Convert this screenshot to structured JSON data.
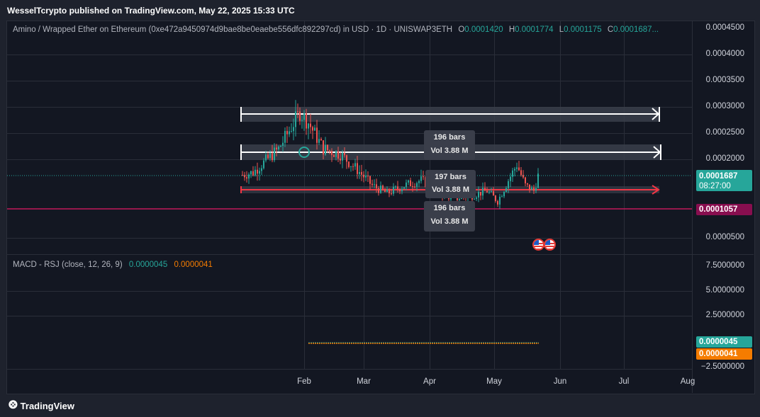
{
  "header": {
    "publisher_line": "WesselTcrypto published on TradingView.com, May 22, 2025 15:33 UTC"
  },
  "symbol": {
    "description": "Amino / Wrapped Ether on Ethereum (0xe472a9450974d9bae8be0eaebe556dfc892297cd) in USD · 1D · UNISWAP3ETH",
    "open_label": "O",
    "open": "0.0001420",
    "high_label": "H",
    "high": "0.0001774",
    "low_label": "L",
    "low": "0.0001175",
    "close_label": "C",
    "close": "0.0001687..."
  },
  "price_axis": {
    "ticks": [
      "0.0004500",
      "0.0004000",
      "0.0003500",
      "0.0003000",
      "0.0002500",
      "0.0002000",
      "0.0000500"
    ]
  },
  "price_labels": {
    "current_price": "0.0001687",
    "countdown": "08:27:00",
    "support_level": "0.0001057"
  },
  "macd": {
    "title": "MACD - RSJ (close, 12, 26, 9)",
    "macd_value": "0.0000045",
    "signal_value": "0.0000041",
    "axis_ticks": [
      "7.5000000",
      "5.0000000",
      "2.5000000",
      "−2.5000000"
    ],
    "label_macd": "0.0000045",
    "label_signal": "0.0000041"
  },
  "time_axis": {
    "ticks": [
      "Feb",
      "Mar",
      "Apr",
      "May",
      "Jun",
      "Jul",
      "Aug"
    ]
  },
  "measure_boxes": [
    {
      "bars": "196 bars",
      "vol": "Vol 3.88 M"
    },
    {
      "bars": "197 bars",
      "vol": "Vol 3.88 M"
    },
    {
      "bars": "196 bars",
      "vol": "Vol 3.88 M"
    }
  ],
  "footer": {
    "brand": "TradingView",
    "logo_glyph": "⨷"
  },
  "colors": {
    "up": "#26a69a",
    "down": "#ef5350",
    "macd": "#26a69a",
    "signal": "#f57c00",
    "support": "#c2185b",
    "band": "#363a45",
    "arrow_white": "#ffffff",
    "arrow_red": "#f23645"
  },
  "chart_data": {
    "type": "candlestick",
    "x_range": [
      "2025-01-02",
      "2025-05-22"
    ],
    "y_range": [
      5e-05,
      0.00045
    ],
    "ohlc_last": {
      "open": 0.000142,
      "high": 0.0001774,
      "low": 0.0001175,
      "close": 0.0001687
    },
    "annotations": {
      "upper_resistance": 0.000285,
      "mid_resistance": 0.000215,
      "lower_range": 0.000145,
      "support": 0.0001057
    },
    "series_path": [
      [
        "2025-01-03",
        0.00017
      ],
      [
        "2025-01-08",
        0.000175
      ],
      [
        "2025-01-12",
        0.00019
      ],
      [
        "2025-01-20",
        0.00022
      ],
      [
        "2025-01-30",
        0.00029
      ],
      [
        "2025-02-03",
        0.00027
      ],
      [
        "2025-02-10",
        0.00022
      ],
      [
        "2025-02-18",
        0.00021
      ],
      [
        "2025-02-26",
        0.00018
      ],
      [
        "2025-03-05",
        0.00015
      ],
      [
        "2025-03-12",
        0.000135
      ],
      [
        "2025-03-20",
        0.00015
      ],
      [
        "2025-03-28",
        0.00016
      ],
      [
        "2025-04-05",
        0.00014
      ],
      [
        "2025-04-12",
        0.000125
      ],
      [
        "2025-04-20",
        0.00013
      ],
      [
        "2025-04-28",
        0.00014
      ],
      [
        "2025-05-03",
        0.00012
      ],
      [
        "2025-05-08",
        0.00016
      ],
      [
        "2025-05-12",
        0.00019
      ],
      [
        "2025-05-16",
        0.00015
      ],
      [
        "2025-05-20",
        0.00014
      ],
      [
        "2025-05-22",
        0.0001687
      ]
    ]
  }
}
